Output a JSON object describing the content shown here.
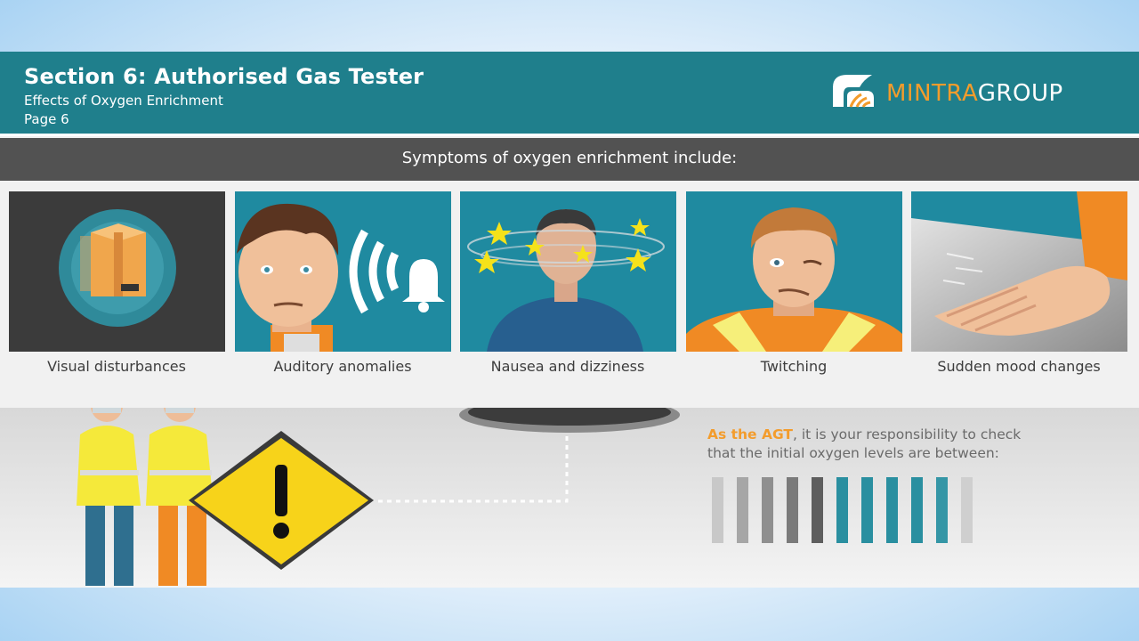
{
  "header": {
    "title": "Section 6: Authorised Gas Tester",
    "subtitle": "Effects of Oxygen Enrichment",
    "page": "Page 6"
  },
  "logo": {
    "part1": "MINTRA",
    "part2": "GROUP",
    "icon": "mintra-logo-icon"
  },
  "banner": {
    "text": "Symptoms of oxygen enrichment include:"
  },
  "symptoms": [
    {
      "label": "Visual disturbances",
      "icon": "blurred-box-image"
    },
    {
      "label": "Auditory anomalies",
      "icon": "bell-sound-image"
    },
    {
      "label": "Nausea and dizziness",
      "icon": "dizzy-stars-image"
    },
    {
      "label": "Twitching",
      "icon": "twitching-face-image"
    },
    {
      "label": "Sudden mood changes",
      "icon": "hand-slam-image"
    }
  ],
  "responsibility": {
    "highlight": "As the AGT",
    "line1_rest": ", it is your responsibility to check",
    "line2": "that the initial oxygen levels are between:"
  },
  "colors": {
    "teal": "#1f7f8c",
    "accent": "#f39c2c",
    "banner": "#525252",
    "warning": "#f7d31a"
  },
  "level_bars": {
    "gray": [
      "#bdbdbd",
      "#a6a6a6",
      "#8f8f8f",
      "#7a7a7a",
      "#666666"
    ],
    "teal": [
      "#2a8fa0",
      "#2a8fa0",
      "#2a8fa0",
      "#2a8fa0",
      "#2a8fa0"
    ],
    "fade": [
      "#cfcfcf"
    ]
  }
}
